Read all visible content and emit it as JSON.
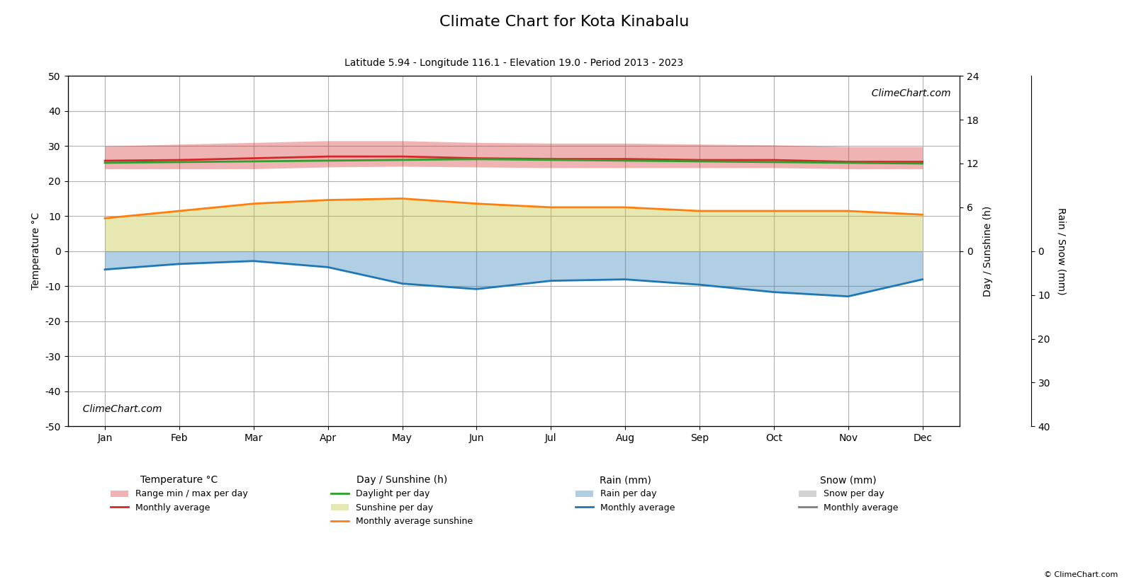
{
  "chart_data": {
    "type": "line",
    "title": "Climate Chart for Kota Kinabalu",
    "subtitle": "Latitude 5.94 - Longitude 116.1 - Elevation 19.0 - Period 2013 - 2023",
    "categories": [
      "Jan",
      "Feb",
      "Mar",
      "Apr",
      "May",
      "Jun",
      "Jul",
      "Aug",
      "Sep",
      "Oct",
      "Nov",
      "Dec"
    ],
    "ylabel": "Temperature °C",
    "y2label": "Day / Sunshine (h)",
    "y3label": "Rain / Snow (mm)",
    "ylim": [
      -50,
      50
    ],
    "yticks": [
      -50,
      -40,
      -30,
      -20,
      -10,
      0,
      10,
      20,
      30,
      40,
      50
    ],
    "y2lim": [
      -24,
      24
    ],
    "y2ticks": [
      0,
      6,
      12,
      18,
      24
    ],
    "y3lim": [
      40,
      -40
    ],
    "y3ticks": [
      0,
      10,
      20,
      30,
      40
    ],
    "grid": true,
    "legend": "upper center",
    "legend_groups": [
      "Temperature °C",
      "Day / Sunshine (h)",
      "Rain (mm)",
      "Snow (mm)"
    ],
    "series": [
      {
        "name": "Range min / max per day",
        "group": "Temperature °C",
        "type": "range",
        "axis": "y",
        "color": "#d62728",
        "low": [
          23.5,
          23.5,
          23.5,
          24.0,
          24.2,
          24.0,
          23.8,
          23.8,
          23.8,
          23.8,
          23.5,
          23.5
        ],
        "high": [
          30.0,
          30.5,
          31.0,
          31.5,
          31.5,
          31.0,
          30.8,
          30.8,
          30.5,
          30.3,
          29.8,
          29.8
        ]
      },
      {
        "name": "Monthly average",
        "group": "Temperature °C",
        "type": "line",
        "axis": "y",
        "color": "#d62728",
        "values": [
          25.8,
          26.0,
          26.5,
          27.0,
          27.0,
          26.5,
          26.3,
          26.3,
          26.0,
          26.0,
          25.5,
          25.5
        ]
      },
      {
        "name": "Daylight per day",
        "group": "Day / Sunshine (h)",
        "type": "line",
        "axis": "y2",
        "color": "#2ca02c",
        "values": [
          12.1,
          12.2,
          12.3,
          12.4,
          12.5,
          12.6,
          12.5,
          12.4,
          12.3,
          12.2,
          12.1,
          12.0
        ]
      },
      {
        "name": "Sunshine per day",
        "group": "Day / Sunshine (h)",
        "type": "area",
        "axis": "y2",
        "color": "#bcbd22",
        "values": [
          4.5,
          5.5,
          6.5,
          7.0,
          7.2,
          6.5,
          6.0,
          6.0,
          5.5,
          5.5,
          5.5,
          5.0
        ]
      },
      {
        "name": "Monthly average sunshine",
        "group": "Day / Sunshine (h)",
        "type": "line",
        "axis": "y2",
        "color": "#ff7f0e",
        "values": [
          4.5,
          5.5,
          6.5,
          7.0,
          7.2,
          6.5,
          6.0,
          6.0,
          5.5,
          5.5,
          5.5,
          5.0
        ]
      },
      {
        "name": "Rain per day",
        "group": "Rain (mm)",
        "type": "area",
        "axis": "y3",
        "color": "#1f77b4",
        "values": [
          4.193548,
          2.928571,
          2.258065,
          3.666667,
          7.419355,
          8.666667,
          6.774194,
          6.451613,
          7.666667,
          9.354839,
          10.333333,
          6.451613
        ]
      },
      {
        "name": "Monthly average",
        "group": "Rain (mm)",
        "type": "line",
        "axis": "y3",
        "color": "#1f77b4",
        "values": [
          4.193548,
          2.928571,
          2.258065,
          3.666667,
          7.419355,
          8.666667,
          6.774194,
          6.451613,
          7.666667,
          9.354839,
          10.333333,
          6.451613
        ]
      },
      {
        "name": "Snow per day",
        "group": "Snow (mm)",
        "type": "area",
        "axis": "y3",
        "color": "#7f7f7f",
        "values": [
          null,
          null,
          null,
          null,
          null,
          null,
          null,
          null,
          null,
          null,
          null,
          null
        ]
      },
      {
        "name": "Monthly average",
        "group": "Snow (mm)",
        "type": "line",
        "axis": "y3",
        "color": "#7f7f7f",
        "values": [
          null,
          null,
          null,
          null,
          null,
          null,
          null,
          null,
          null,
          null,
          null,
          null
        ]
      }
    ],
    "annotations": [
      "  ClimeChart.com",
      "  ClimeChart.com"
    ],
    "footer": "© ClimeChart.com"
  }
}
